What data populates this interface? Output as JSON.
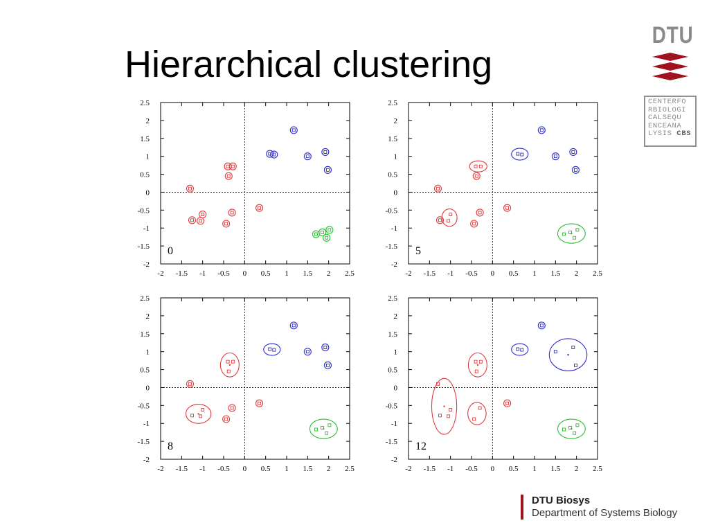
{
  "title": "Hierarchical clustering",
  "logo": {
    "dtu_text": "DTU",
    "cbs_lines": [
      "CENTERFO",
      "RBIOLOGI",
      "CALSEQU",
      "ENCEANA",
      "LYSIS"
    ],
    "cbs_bold": "CBS"
  },
  "footer": {
    "org": "DTU Biosys",
    "department": "Department of Systems Biology"
  },
  "colors": {
    "red": "#e0393b",
    "blue": "#2b2bd0",
    "green": "#22c02a",
    "brand_red": "#a0121d"
  },
  "chart_data": [
    {
      "type": "scatter",
      "label": "0",
      "xlim": [
        -2,
        2.5
      ],
      "ylim": [
        -2,
        2.5
      ],
      "xticks": [
        "-2",
        "-1.5",
        "-1",
        "-0.5",
        "0",
        "0.5",
        "1",
        "1.5",
        "2",
        "2.5"
      ],
      "yticks": [
        "2.5",
        "2",
        "1.5",
        "1",
        "0.5",
        "0",
        "-0.5",
        "-1",
        "-1.5",
        "-2"
      ],
      "series": [
        {
          "color": "red",
          "points": [
            [
              -1.3,
              0.1
            ],
            [
              -1.25,
              -0.78
            ],
            [
              -1.0,
              -0.62
            ],
            [
              -1.05,
              -0.8
            ],
            [
              -0.4,
              0.72
            ],
            [
              -0.28,
              0.72
            ],
            [
              -0.38,
              0.45
            ],
            [
              -0.3,
              -0.57
            ],
            [
              -0.44,
              -0.88
            ],
            [
              0.35,
              -0.44
            ]
          ]
        },
        {
          "color": "blue",
          "points": [
            [
              0.6,
              1.07
            ],
            [
              0.7,
              1.05
            ],
            [
              1.17,
              1.73
            ],
            [
              1.5,
              1.0
            ],
            [
              1.92,
              1.12
            ],
            [
              1.98,
              0.62
            ]
          ]
        },
        {
          "color": "green",
          "points": [
            [
              1.7,
              -1.17
            ],
            [
              1.85,
              -1.12
            ],
            [
              1.95,
              -1.27
            ],
            [
              2.02,
              -1.05
            ]
          ]
        }
      ],
      "clusters": []
    },
    {
      "type": "scatter",
      "label": "5",
      "xlim": [
        -2,
        2.5
      ],
      "ylim": [
        -2,
        2.5
      ],
      "xticks": [
        "-2",
        "-1.5",
        "-1",
        "-0.5",
        "0",
        "0.5",
        "1",
        "1.5",
        "2",
        "2.5"
      ],
      "yticks": [
        "2.5",
        "2",
        "1.5",
        "1",
        "0.5",
        "0",
        "-0.5",
        "-1",
        "-1.5",
        "-2"
      ],
      "series": [
        {
          "color": "red",
          "points": [
            [
              -1.3,
              0.1
            ],
            [
              -1.25,
              -0.78
            ],
            [
              -1.0,
              -0.62
            ],
            [
              -1.05,
              -0.8
            ],
            [
              -0.4,
              0.72
            ],
            [
              -0.28,
              0.72
            ],
            [
              -0.38,
              0.45
            ],
            [
              -0.3,
              -0.57
            ],
            [
              -0.44,
              -0.88
            ],
            [
              0.35,
              -0.44
            ]
          ]
        },
        {
          "color": "blue",
          "points": [
            [
              0.6,
              1.07
            ],
            [
              0.7,
              1.05
            ],
            [
              1.17,
              1.73
            ],
            [
              1.5,
              1.0
            ],
            [
              1.92,
              1.12
            ],
            [
              1.98,
              0.62
            ]
          ]
        },
        {
          "color": "green",
          "points": [
            [
              1.7,
              -1.17
            ],
            [
              1.85,
              -1.12
            ],
            [
              1.95,
              -1.27
            ],
            [
              2.02,
              -1.05
            ]
          ]
        }
      ],
      "clusters": [
        {
          "color": "red",
          "members": [
            [
              -0.4,
              0.72
            ],
            [
              -0.28,
              0.72
            ]
          ]
        },
        {
          "color": "red",
          "members": [
            [
              -1.0,
              -0.62
            ],
            [
              -1.05,
              -0.8
            ]
          ]
        },
        {
          "color": "blue",
          "members": [
            [
              0.6,
              1.07
            ],
            [
              0.7,
              1.05
            ]
          ]
        },
        {
          "color": "green",
          "members": [
            [
              1.7,
              -1.17
            ],
            [
              1.85,
              -1.12
            ],
            [
              1.95,
              -1.27
            ],
            [
              2.02,
              -1.05
            ]
          ]
        }
      ]
    },
    {
      "type": "scatter",
      "label": "8",
      "xlim": [
        -2,
        2.5
      ],
      "ylim": [
        -2,
        2.5
      ],
      "xticks": [
        "-2",
        "-1.5",
        "-1",
        "-0.5",
        "0",
        "0.5",
        "1",
        "1.5",
        "2",
        "2.5"
      ],
      "yticks": [
        "2.5",
        "2",
        "1.5",
        "1",
        "0.5",
        "0",
        "-0.5",
        "-1",
        "-1.5",
        "-2"
      ],
      "series": [
        {
          "color": "red",
          "points": [
            [
              -1.3,
              0.1
            ],
            [
              -1.25,
              -0.78
            ],
            [
              -1.0,
              -0.62
            ],
            [
              -1.05,
              -0.8
            ],
            [
              -0.4,
              0.72
            ],
            [
              -0.28,
              0.72
            ],
            [
              -0.38,
              0.45
            ],
            [
              -0.3,
              -0.57
            ],
            [
              -0.44,
              -0.88
            ],
            [
              0.35,
              -0.44
            ]
          ]
        },
        {
          "color": "blue",
          "points": [
            [
              0.6,
              1.07
            ],
            [
              0.7,
              1.05
            ],
            [
              1.17,
              1.73
            ],
            [
              1.5,
              1.0
            ],
            [
              1.92,
              1.12
            ],
            [
              1.98,
              0.62
            ]
          ]
        },
        {
          "color": "green",
          "points": [
            [
              1.7,
              -1.17
            ],
            [
              1.85,
              -1.12
            ],
            [
              1.95,
              -1.27
            ],
            [
              2.02,
              -1.05
            ]
          ]
        }
      ],
      "clusters": [
        {
          "color": "red",
          "members": [
            [
              -0.4,
              0.72
            ],
            [
              -0.28,
              0.72
            ],
            [
              -0.38,
              0.45
            ]
          ]
        },
        {
          "color": "red",
          "members": [
            [
              -1.25,
              -0.78
            ],
            [
              -1.0,
              -0.62
            ],
            [
              -1.05,
              -0.8
            ]
          ]
        },
        {
          "color": "blue",
          "members": [
            [
              0.6,
              1.07
            ],
            [
              0.7,
              1.05
            ]
          ]
        },
        {
          "color": "green",
          "members": [
            [
              1.7,
              -1.17
            ],
            [
              1.85,
              -1.12
            ],
            [
              1.95,
              -1.27
            ],
            [
              2.02,
              -1.05
            ]
          ]
        }
      ]
    },
    {
      "type": "scatter",
      "label": "12",
      "xlim": [
        -2,
        2.5
      ],
      "ylim": [
        -2,
        2.5
      ],
      "xticks": [
        "-2",
        "-1.5",
        "-1",
        "-0.5",
        "0",
        "0.5",
        "1",
        "1.5",
        "2",
        "2.5"
      ],
      "yticks": [
        "2.5",
        "2",
        "1.5",
        "1",
        "0.5",
        "0",
        "-0.5",
        "-1",
        "-1.5",
        "-2"
      ],
      "series": [
        {
          "color": "red",
          "points": [
            [
              -1.3,
              0.1
            ],
            [
              -1.25,
              -0.78
            ],
            [
              -1.0,
              -0.62
            ],
            [
              -1.05,
              -0.8
            ],
            [
              -0.4,
              0.72
            ],
            [
              -0.28,
              0.72
            ],
            [
              -0.38,
              0.45
            ],
            [
              -0.3,
              -0.57
            ],
            [
              -0.44,
              -0.88
            ],
            [
              0.35,
              -0.44
            ]
          ]
        },
        {
          "color": "blue",
          "points": [
            [
              0.6,
              1.07
            ],
            [
              0.7,
              1.05
            ],
            [
              1.17,
              1.73
            ],
            [
              1.5,
              1.0
            ],
            [
              1.92,
              1.12
            ],
            [
              1.98,
              0.62
            ]
          ]
        },
        {
          "color": "green",
          "points": [
            [
              1.7,
              -1.17
            ],
            [
              1.85,
              -1.12
            ],
            [
              1.95,
              -1.27
            ],
            [
              2.02,
              -1.05
            ]
          ]
        }
      ],
      "clusters": [
        {
          "color": "red",
          "members": [
            [
              -0.4,
              0.72
            ],
            [
              -0.28,
              0.72
            ],
            [
              -0.38,
              0.45
            ]
          ]
        },
        {
          "color": "red",
          "members": [
            [
              -1.3,
              0.1
            ],
            [
              -1.25,
              -0.78
            ],
            [
              -1.0,
              -0.62
            ],
            [
              -1.05,
              -0.8
            ]
          ]
        },
        {
          "color": "red",
          "members": [
            [
              -0.3,
              -0.57
            ],
            [
              -0.44,
              -0.88
            ]
          ]
        },
        {
          "color": "blue",
          "members": [
            [
              0.6,
              1.07
            ],
            [
              0.7,
              1.05
            ]
          ]
        },
        {
          "color": "blue",
          "members": [
            [
              1.5,
              1.0
            ],
            [
              1.92,
              1.12
            ],
            [
              1.98,
              0.62
            ]
          ]
        },
        {
          "color": "green",
          "members": [
            [
              1.7,
              -1.17
            ],
            [
              1.85,
              -1.12
            ],
            [
              1.95,
              -1.27
            ],
            [
              2.02,
              -1.05
            ]
          ]
        }
      ]
    }
  ]
}
